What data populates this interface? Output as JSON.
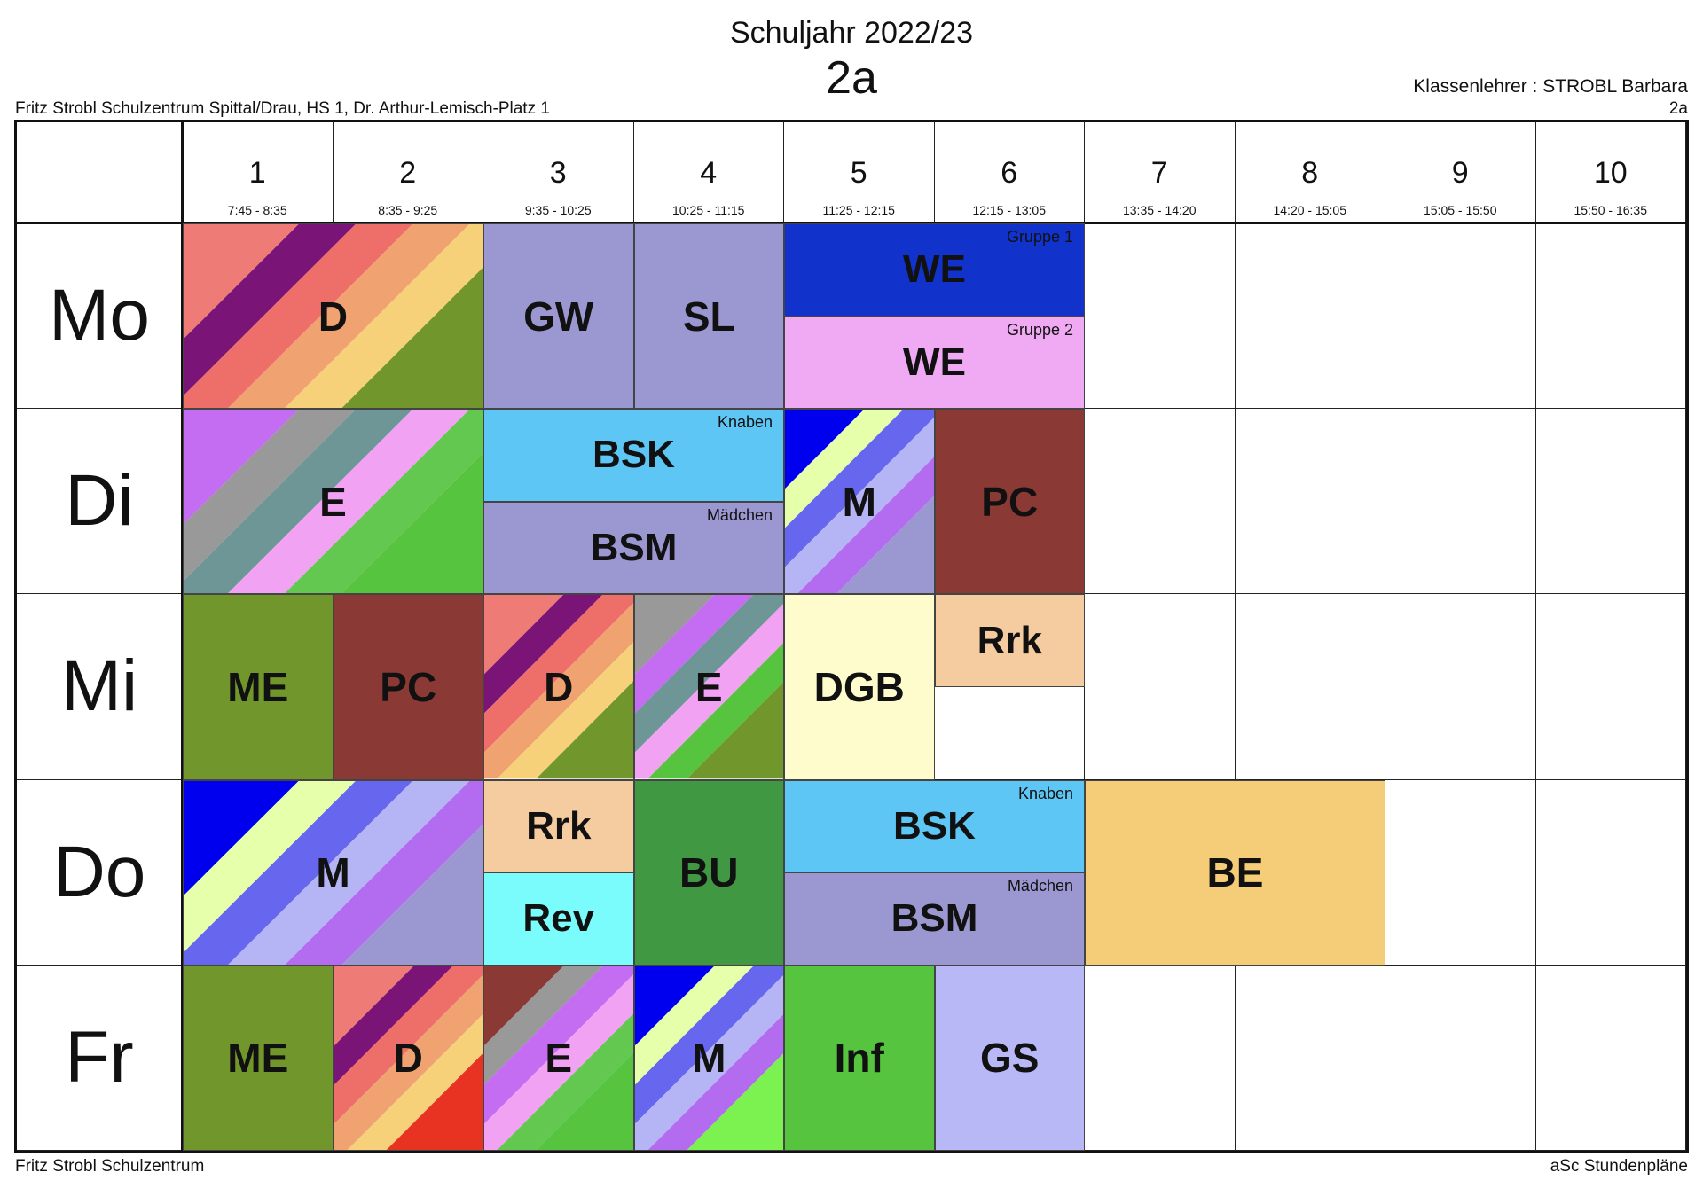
{
  "header": {
    "school_year": "Schuljahr 2022/23",
    "class_name": "2a",
    "school": "Fritz Strobl Schulzentrum Spittal/Drau, HS 1, Dr. Arthur-Lemisch-Platz 1",
    "teacher": "Klassenlehrer : STROBL Barbara",
    "teacher_class": "2a"
  },
  "footer": {
    "left": "Fritz Strobl Schulzentrum",
    "right": "aSc Stundenpläne"
  },
  "periods": [
    {
      "num": "1",
      "time": "7:45 - 8:35"
    },
    {
      "num": "2",
      "time": "8:35 - 9:25"
    },
    {
      "num": "3",
      "time": "9:35 - 10:25"
    },
    {
      "num": "4",
      "time": "10:25 - 11:15"
    },
    {
      "num": "5",
      "time": "11:25 - 12:15"
    },
    {
      "num": "6",
      "time": "12:15 - 13:05"
    },
    {
      "num": "7",
      "time": "13:35 - 14:20"
    },
    {
      "num": "8",
      "time": "14:20 - 15:05"
    },
    {
      "num": "9",
      "time": "15:05 - 15:50"
    },
    {
      "num": "10",
      "time": "15:50 - 16:35"
    }
  ],
  "days": [
    "Mo",
    "Di",
    "Mi",
    "Do",
    "Fr"
  ],
  "lessons": [
    {
      "day": 0,
      "start": 1,
      "span": 2,
      "part": "full",
      "subject": "D",
      "group": "",
      "colors": [
        "#ee7b76",
        "#7a1577",
        "#ee6e6a",
        "#f0a270",
        "#f6d17a",
        "#71962b"
      ]
    },
    {
      "day": 0,
      "start": 3,
      "span": 1,
      "part": "full",
      "subject": "GW",
      "group": "",
      "colors": [
        "#9b98d1"
      ]
    },
    {
      "day": 0,
      "start": 4,
      "span": 1,
      "part": "full",
      "subject": "SL",
      "group": "",
      "colors": [
        "#9b98d1"
      ]
    },
    {
      "day": 0,
      "start": 5,
      "span": 2,
      "part": "top",
      "subject": "WE",
      "group": "Gruppe 1",
      "colors": [
        "#1133cc"
      ]
    },
    {
      "day": 0,
      "start": 5,
      "span": 2,
      "part": "bottom",
      "subject": "WE",
      "group": "Gruppe 2",
      "colors": [
        "#f0aaf4"
      ]
    },
    {
      "day": 1,
      "start": 1,
      "span": 2,
      "part": "full",
      "subject": "E",
      "group": "",
      "colors": [
        "#c46cf2",
        "#999999",
        "#6e9696",
        "#f2a2f2",
        "#62c850",
        "#56c43e"
      ]
    },
    {
      "day": 1,
      "start": 3,
      "span": 2,
      "part": "top",
      "subject": "BSK",
      "group": "Knaben",
      "colors": [
        "#5ec6f4"
      ]
    },
    {
      "day": 1,
      "start": 3,
      "span": 2,
      "part": "bottom",
      "subject": "BSM",
      "group": "Mädchen",
      "colors": [
        "#9b98d1"
      ]
    },
    {
      "day": 1,
      "start": 5,
      "span": 1,
      "part": "full",
      "subject": "M",
      "group": "",
      "colors": [
        "#0000ee",
        "#e6ffaa",
        "#6666ee",
        "#b5b5f5",
        "#b36cf0",
        "#9b98d1"
      ]
    },
    {
      "day": 1,
      "start": 6,
      "span": 1,
      "part": "full",
      "subject": "PC",
      "group": "",
      "colors": [
        "#8b3934"
      ]
    },
    {
      "day": 2,
      "start": 1,
      "span": 1,
      "part": "full",
      "subject": "ME",
      "group": "",
      "colors": [
        "#71962b"
      ]
    },
    {
      "day": 2,
      "start": 2,
      "span": 1,
      "part": "full",
      "subject": "PC",
      "group": "",
      "colors": [
        "#8b3934"
      ]
    },
    {
      "day": 2,
      "start": 3,
      "span": 1,
      "part": "full",
      "subject": "D",
      "group": "",
      "colors": [
        "#ee7b76",
        "#7a1577",
        "#ee6e6a",
        "#f0a270",
        "#f6d17a",
        "#71962b"
      ]
    },
    {
      "day": 2,
      "start": 4,
      "span": 1,
      "part": "full",
      "subject": "E",
      "group": "",
      "colors": [
        "#999999",
        "#c46cf2",
        "#6e9696",
        "#f2a2f2",
        "#56c43e",
        "#71962b"
      ]
    },
    {
      "day": 2,
      "start": 5,
      "span": 1,
      "part": "full",
      "subject": "DGB",
      "group": "",
      "colors": [
        "#fefccc"
      ]
    },
    {
      "day": 2,
      "start": 6,
      "span": 1,
      "part": "top",
      "subject": "Rrk",
      "group": "",
      "colors": [
        "#f5cba0"
      ]
    },
    {
      "day": 3,
      "start": 1,
      "span": 2,
      "part": "full",
      "subject": "M",
      "group": "",
      "colors": [
        "#0000ee",
        "#e6ffaa",
        "#6666ee",
        "#b5b5f5",
        "#b36cf0",
        "#9b98d1"
      ]
    },
    {
      "day": 3,
      "start": 3,
      "span": 1,
      "part": "top",
      "subject": "Rrk",
      "group": "",
      "colors": [
        "#f5cba0"
      ]
    },
    {
      "day": 3,
      "start": 3,
      "span": 1,
      "part": "bottom",
      "subject": "Rev",
      "group": "",
      "colors": [
        "#7afcfc"
      ]
    },
    {
      "day": 3,
      "start": 4,
      "span": 1,
      "part": "full",
      "subject": "BU",
      "group": "",
      "colors": [
        "#409842"
      ]
    },
    {
      "day": 3,
      "start": 5,
      "span": 2,
      "part": "top",
      "subject": "BSK",
      "group": "Knaben",
      "colors": [
        "#5ec6f4"
      ]
    },
    {
      "day": 3,
      "start": 5,
      "span": 2,
      "part": "bottom",
      "subject": "BSM",
      "group": "Mädchen",
      "colors": [
        "#9b98d1"
      ]
    },
    {
      "day": 3,
      "start": 7,
      "span": 2,
      "part": "full",
      "subject": "BE",
      "group": "",
      "colors": [
        "#f5cd78"
      ]
    },
    {
      "day": 4,
      "start": 1,
      "span": 1,
      "part": "full",
      "subject": "ME",
      "group": "",
      "colors": [
        "#71962b"
      ]
    },
    {
      "day": 4,
      "start": 2,
      "span": 1,
      "part": "full",
      "subject": "D",
      "group": "",
      "colors": [
        "#ee7b76",
        "#7a1577",
        "#ee6e6a",
        "#f0a270",
        "#f6d17a",
        "#e83322"
      ]
    },
    {
      "day": 4,
      "start": 3,
      "span": 1,
      "part": "full",
      "subject": "E",
      "group": "",
      "colors": [
        "#8b3934",
        "#999999",
        "#c46cf2",
        "#f2a2f2",
        "#62c850",
        "#56c43e"
      ]
    },
    {
      "day": 4,
      "start": 4,
      "span": 1,
      "part": "full",
      "subject": "M",
      "group": "",
      "colors": [
        "#0000ee",
        "#e6ffaa",
        "#6666ee",
        "#b5b5f5",
        "#b36cf0",
        "#7cf250"
      ]
    },
    {
      "day": 4,
      "start": 5,
      "span": 1,
      "part": "full",
      "subject": "Inf",
      "group": "",
      "colors": [
        "#56c43e"
      ]
    },
    {
      "day": 4,
      "start": 6,
      "span": 1,
      "part": "full",
      "subject": "GS",
      "group": "",
      "colors": [
        "#b8b8f6"
      ]
    }
  ]
}
